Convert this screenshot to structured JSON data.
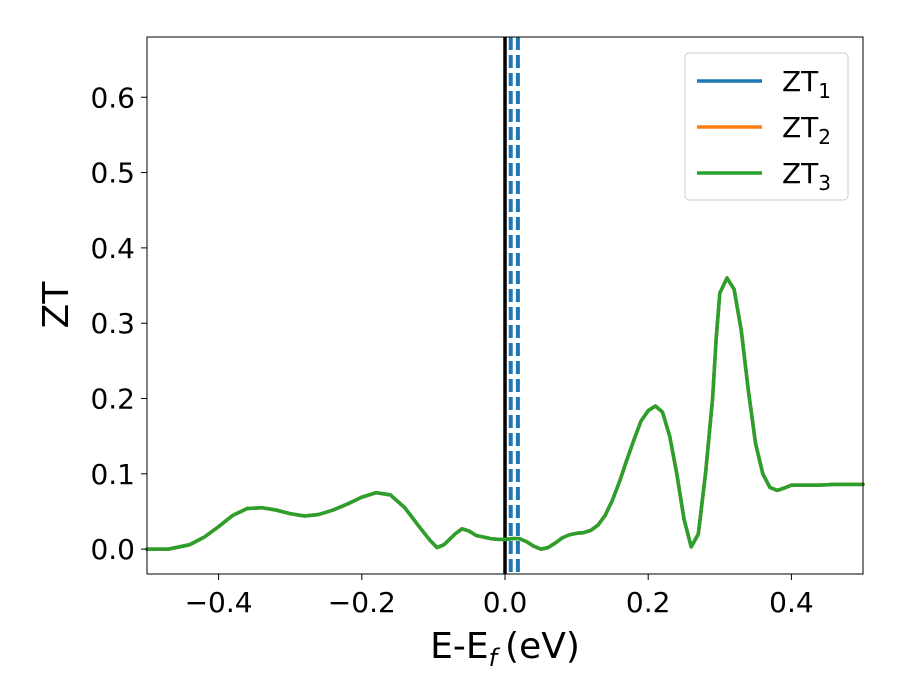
{
  "chart_data": {
    "type": "line",
    "title": "",
    "xlabel": "E-E",
    "xlabel_sub": "f",
    "xlabel_unit": "(eV)",
    "ylabel": "ZT",
    "xlim": [
      -0.5,
      0.5
    ],
    "ylim": [
      -0.033,
      0.68
    ],
    "x_ticks": [
      -0.4,
      -0.2,
      0.0,
      0.2,
      0.4
    ],
    "x_tick_labels": [
      "−0.4",
      "−0.2",
      "0.0",
      "0.2",
      "0.4"
    ],
    "y_ticks": [
      0.0,
      0.1,
      0.2,
      0.3,
      0.4,
      0.5,
      0.6
    ],
    "y_tick_labels": [
      "0.0",
      "0.1",
      "0.2",
      "0.3",
      "0.4",
      "0.5",
      "0.6"
    ],
    "grid": false,
    "legend_position": "top-right",
    "vertical_lines": [
      {
        "x": 0.0,
        "color": "#000000",
        "style": "solid"
      },
      {
        "x": 0.008,
        "color": "#1f77b4",
        "style": "dashed"
      },
      {
        "x": 0.018,
        "color": "#1f77b4",
        "style": "dashed"
      }
    ],
    "series": [
      {
        "name": "ZT",
        "name_sub": "1",
        "color": "#1f77b4",
        "x": [
          -0.5,
          -0.47,
          -0.44,
          -0.42,
          -0.4,
          -0.38,
          -0.36,
          -0.34,
          -0.32,
          -0.3,
          -0.28,
          -0.26,
          -0.24,
          -0.22,
          -0.2,
          -0.18,
          -0.16,
          -0.14,
          -0.12,
          -0.105,
          -0.095,
          -0.085,
          -0.07,
          -0.06,
          -0.05,
          -0.04,
          -0.03,
          -0.02,
          -0.01,
          0.0,
          0.01,
          0.02,
          0.03,
          0.04,
          0.05,
          0.06,
          0.07,
          0.08,
          0.09,
          0.1,
          0.11,
          0.12,
          0.13,
          0.14,
          0.15,
          0.16,
          0.17,
          0.18,
          0.19,
          0.2,
          0.21,
          0.22,
          0.23,
          0.24,
          0.25,
          0.26,
          0.27,
          0.28,
          0.29,
          0.295,
          0.3,
          0.31,
          0.32,
          0.33,
          0.34,
          0.35,
          0.36,
          0.37,
          0.38,
          0.39,
          0.4,
          0.42,
          0.44,
          0.46,
          0.48,
          0.5
        ],
        "y": [
          0.0,
          0.0,
          0.006,
          0.016,
          0.03,
          0.045,
          0.054,
          0.055,
          0.052,
          0.047,
          0.044,
          0.046,
          0.052,
          0.06,
          0.069,
          0.075,
          0.072,
          0.055,
          0.03,
          0.012,
          0.002,
          0.006,
          0.02,
          0.027,
          0.024,
          0.018,
          0.016,
          0.014,
          0.013,
          0.013,
          0.014,
          0.014,
          0.01,
          0.004,
          0.0,
          0.002,
          0.008,
          0.015,
          0.019,
          0.021,
          0.022,
          0.025,
          0.032,
          0.045,
          0.065,
          0.09,
          0.118,
          0.145,
          0.17,
          0.184,
          0.19,
          0.182,
          0.15,
          0.1,
          0.04,
          0.003,
          0.02,
          0.1,
          0.2,
          0.28,
          0.34,
          0.36,
          0.345,
          0.29,
          0.21,
          0.14,
          0.1,
          0.082,
          0.078,
          0.081,
          0.085,
          0.085,
          0.085,
          0.086,
          0.086,
          0.086
        ]
      },
      {
        "name": "ZT",
        "name_sub": "2",
        "color": "#ff7f0e",
        "x": [
          -0.5,
          -0.47,
          -0.44,
          -0.42,
          -0.4,
          -0.38,
          -0.36,
          -0.34,
          -0.32,
          -0.3,
          -0.28,
          -0.26,
          -0.24,
          -0.22,
          -0.2,
          -0.18,
          -0.16,
          -0.14,
          -0.12,
          -0.105,
          -0.095,
          -0.085,
          -0.07,
          -0.06,
          -0.05,
          -0.04,
          -0.03,
          -0.02,
          -0.01,
          0.0,
          0.01,
          0.02,
          0.03,
          0.04,
          0.05,
          0.06,
          0.07,
          0.08,
          0.09,
          0.1,
          0.11,
          0.12,
          0.13,
          0.14,
          0.15,
          0.16,
          0.17,
          0.18,
          0.19,
          0.2,
          0.21,
          0.22,
          0.23,
          0.24,
          0.25,
          0.26,
          0.27,
          0.28,
          0.29,
          0.295,
          0.3,
          0.31,
          0.32,
          0.33,
          0.34,
          0.35,
          0.36,
          0.37,
          0.38,
          0.39,
          0.4,
          0.42,
          0.44,
          0.46,
          0.48,
          0.5
        ],
        "y": [
          0.0,
          0.0,
          0.006,
          0.016,
          0.03,
          0.045,
          0.054,
          0.055,
          0.052,
          0.047,
          0.044,
          0.046,
          0.052,
          0.06,
          0.069,
          0.075,
          0.072,
          0.055,
          0.03,
          0.012,
          0.002,
          0.006,
          0.02,
          0.027,
          0.024,
          0.018,
          0.016,
          0.014,
          0.013,
          0.013,
          0.014,
          0.014,
          0.01,
          0.004,
          0.0,
          0.002,
          0.008,
          0.015,
          0.019,
          0.021,
          0.022,
          0.025,
          0.032,
          0.045,
          0.065,
          0.09,
          0.118,
          0.145,
          0.17,
          0.184,
          0.19,
          0.182,
          0.15,
          0.1,
          0.04,
          0.003,
          0.02,
          0.1,
          0.2,
          0.28,
          0.34,
          0.36,
          0.345,
          0.29,
          0.21,
          0.14,
          0.1,
          0.082,
          0.078,
          0.081,
          0.085,
          0.085,
          0.085,
          0.086,
          0.086,
          0.086
        ]
      },
      {
        "name": "ZT",
        "name_sub": "3",
        "color": "#2ca02c",
        "x": [
          -0.5,
          -0.47,
          -0.44,
          -0.42,
          -0.4,
          -0.38,
          -0.36,
          -0.34,
          -0.32,
          -0.3,
          -0.28,
          -0.26,
          -0.24,
          -0.22,
          -0.2,
          -0.18,
          -0.16,
          -0.14,
          -0.12,
          -0.105,
          -0.095,
          -0.085,
          -0.07,
          -0.06,
          -0.05,
          -0.04,
          -0.03,
          -0.02,
          -0.01,
          0.0,
          0.01,
          0.02,
          0.03,
          0.04,
          0.05,
          0.06,
          0.07,
          0.08,
          0.09,
          0.1,
          0.11,
          0.12,
          0.13,
          0.14,
          0.15,
          0.16,
          0.17,
          0.18,
          0.19,
          0.2,
          0.21,
          0.22,
          0.23,
          0.24,
          0.25,
          0.26,
          0.27,
          0.28,
          0.29,
          0.295,
          0.3,
          0.31,
          0.32,
          0.33,
          0.34,
          0.35,
          0.36,
          0.37,
          0.38,
          0.39,
          0.4,
          0.42,
          0.44,
          0.46,
          0.48,
          0.5
        ],
        "y": [
          0.0,
          0.0,
          0.006,
          0.016,
          0.03,
          0.045,
          0.054,
          0.055,
          0.052,
          0.047,
          0.044,
          0.046,
          0.052,
          0.06,
          0.069,
          0.075,
          0.072,
          0.055,
          0.03,
          0.012,
          0.002,
          0.006,
          0.02,
          0.027,
          0.024,
          0.018,
          0.016,
          0.014,
          0.013,
          0.013,
          0.014,
          0.014,
          0.01,
          0.004,
          0.0,
          0.002,
          0.008,
          0.015,
          0.019,
          0.021,
          0.022,
          0.025,
          0.032,
          0.045,
          0.065,
          0.09,
          0.118,
          0.145,
          0.17,
          0.184,
          0.19,
          0.182,
          0.15,
          0.1,
          0.04,
          0.003,
          0.02,
          0.1,
          0.2,
          0.28,
          0.34,
          0.36,
          0.345,
          0.29,
          0.21,
          0.14,
          0.1,
          0.082,
          0.078,
          0.081,
          0.085,
          0.085,
          0.085,
          0.086,
          0.086,
          0.086
        ]
      }
    ]
  }
}
